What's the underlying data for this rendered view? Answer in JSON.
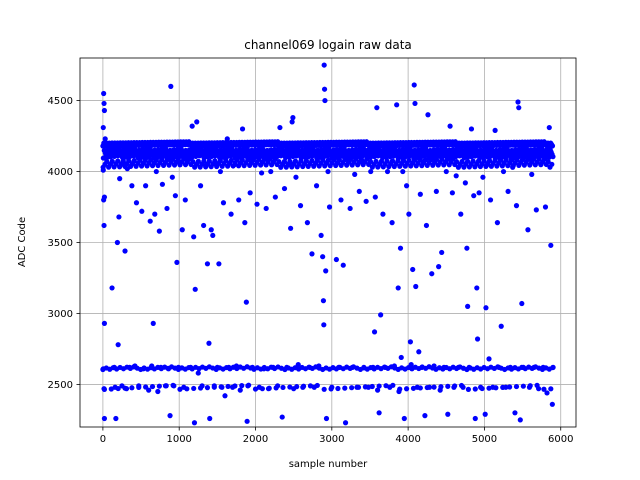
{
  "chart_data": {
    "type": "scatter",
    "title": "channel069 logain raw data",
    "xlabel": "sample number",
    "ylabel": "ADC Code",
    "xlim": [
      -300,
      6200
    ],
    "ylim": [
      2200,
      4800
    ],
    "xticks": [
      0,
      1000,
      2000,
      3000,
      4000,
      5000,
      6000
    ],
    "yticks": [
      2500,
      3000,
      3500,
      4000,
      4500
    ],
    "xtick_labels": [
      "0",
      "1000",
      "2000",
      "3000",
      "4000",
      "5000",
      "6000"
    ],
    "ytick_labels": [
      "2500",
      "3000",
      "3500",
      "4000",
      "4500"
    ],
    "grid": true,
    "marker_color": "#0000ff",
    "series": [
      {
        "points": [
          [
            10,
            4550
          ],
          [
            15,
            4480
          ],
          [
            20,
            4430
          ],
          [
            5,
            4310
          ],
          [
            30,
            4230
          ],
          [
            5,
            4010
          ],
          [
            20,
            3820
          ],
          [
            10,
            3800
          ],
          [
            15,
            3620
          ],
          [
            20,
            2930
          ],
          [
            5,
            2610
          ],
          [
            15,
            2470
          ],
          [
            20,
            2260
          ],
          [
            120,
            3180
          ],
          [
            130,
            4130
          ],
          [
            150,
            2620
          ],
          [
            160,
            2480
          ],
          [
            170,
            2260
          ],
          [
            190,
            3500
          ],
          [
            200,
            2780
          ],
          [
            210,
            3680
          ],
          [
            220,
            3950
          ],
          [
            230,
            4180
          ],
          [
            250,
            2490
          ],
          [
            270,
            4050
          ],
          [
            290,
            3440
          ],
          [
            310,
            2470
          ],
          [
            320,
            4020
          ],
          [
            350,
            2620
          ],
          [
            380,
            3900
          ],
          [
            400,
            4180
          ],
          [
            420,
            2630
          ],
          [
            440,
            3780
          ],
          [
            470,
            2490
          ],
          [
            490,
            4100
          ],
          [
            510,
            3720
          ],
          [
            530,
            2610
          ],
          [
            560,
            3900
          ],
          [
            580,
            4100
          ],
          [
            600,
            2460
          ],
          [
            620,
            3650
          ],
          [
            640,
            2630
          ],
          [
            660,
            2930
          ],
          [
            680,
            3700
          ],
          [
            700,
            4000
          ],
          [
            720,
            2450
          ],
          [
            740,
            3580
          ],
          [
            760,
            2620
          ],
          [
            780,
            3910
          ],
          [
            800,
            4190
          ],
          [
            820,
            2490
          ],
          [
            840,
            3740
          ],
          [
            860,
            2610
          ],
          [
            880,
            2280
          ],
          [
            890,
            4600
          ],
          [
            910,
            3960
          ],
          [
            930,
            2490
          ],
          [
            950,
            3830
          ],
          [
            970,
            3360
          ],
          [
            990,
            2620
          ],
          [
            1010,
            4060
          ],
          [
            1040,
            3590
          ],
          [
            1060,
            2480
          ],
          [
            1080,
            3800
          ],
          [
            1110,
            4100
          ],
          [
            1150,
            2620
          ],
          [
            1170,
            4320
          ],
          [
            1190,
            3540
          ],
          [
            1200,
            2230
          ],
          [
            1210,
            3170
          ],
          [
            1230,
            4350
          ],
          [
            1250,
            2580
          ],
          [
            1280,
            3900
          ],
          [
            1300,
            2490
          ],
          [
            1320,
            3620
          ],
          [
            1350,
            4040
          ],
          [
            1370,
            3350
          ],
          [
            1390,
            2790
          ],
          [
            1400,
            2260
          ],
          [
            1420,
            3590
          ],
          [
            1440,
            3550
          ],
          [
            1460,
            2490
          ],
          [
            1480,
            4060
          ],
          [
            1500,
            2620
          ],
          [
            1520,
            3350
          ],
          [
            1540,
            4000
          ],
          [
            1560,
            2480
          ],
          [
            1580,
            3780
          ],
          [
            1600,
            2420
          ],
          [
            1630,
            4230
          ],
          [
            1650,
            2620
          ],
          [
            1680,
            3700
          ],
          [
            1700,
            2480
          ],
          [
            1730,
            4050
          ],
          [
            1750,
            2630
          ],
          [
            1780,
            3800
          ],
          [
            1800,
            2460
          ],
          [
            1830,
            4300
          ],
          [
            1860,
            3640
          ],
          [
            1880,
            3080
          ],
          [
            1890,
            2240
          ],
          [
            1900,
            2490
          ],
          [
            1930,
            3850
          ],
          [
            1960,
            2620
          ],
          [
            1990,
            4200
          ],
          [
            2020,
            3770
          ],
          [
            2050,
            2480
          ],
          [
            2080,
            3990
          ],
          [
            2110,
            2610
          ],
          [
            2140,
            3740
          ],
          [
            2170,
            2470
          ],
          [
            2200,
            4000
          ],
          [
            2230,
            2620
          ],
          [
            2260,
            3820
          ],
          [
            2290,
            2490
          ],
          [
            2320,
            4310
          ],
          [
            2350,
            2270
          ],
          [
            2380,
            3880
          ],
          [
            2410,
            2620
          ],
          [
            2440,
            4050
          ],
          [
            2460,
            3600
          ],
          [
            2480,
            4350
          ],
          [
            2490,
            4380
          ],
          [
            2500,
            2470
          ],
          [
            2530,
            3960
          ],
          [
            2560,
            2640
          ],
          [
            2590,
            3760
          ],
          [
            2620,
            2480
          ],
          [
            2650,
            4200
          ],
          [
            2680,
            3640
          ],
          [
            2710,
            2620
          ],
          [
            2740,
            3420
          ],
          [
            2770,
            2480
          ],
          [
            2800,
            3900
          ],
          [
            2830,
            2630
          ],
          [
            2860,
            3550
          ],
          [
            2880,
            3400
          ],
          [
            2890,
            3090
          ],
          [
            2895,
            2920
          ],
          [
            2900,
            4750
          ],
          [
            2905,
            4580
          ],
          [
            2910,
            4500
          ],
          [
            2920,
            3300
          ],
          [
            2930,
            2260
          ],
          [
            2950,
            4000
          ],
          [
            2970,
            3750
          ],
          [
            3000,
            2480
          ],
          [
            3030,
            4150
          ],
          [
            3060,
            3380
          ],
          [
            3090,
            2620
          ],
          [
            3120,
            3800
          ],
          [
            3150,
            3340
          ],
          [
            3180,
            2230
          ],
          [
            3210,
            4100
          ],
          [
            3240,
            3740
          ],
          [
            3270,
            2620
          ],
          [
            3300,
            3980
          ],
          [
            3330,
            2480
          ],
          [
            3360,
            3860
          ],
          [
            3390,
            4080
          ],
          [
            3420,
            2620
          ],
          [
            3450,
            3790
          ],
          [
            3480,
            2480
          ],
          [
            3510,
            4000
          ],
          [
            3540,
            2620
          ],
          [
            3560,
            2870
          ],
          [
            3570,
            3820
          ],
          [
            3590,
            4450
          ],
          [
            3600,
            2460
          ],
          [
            3620,
            2300
          ],
          [
            3640,
            2990
          ],
          [
            3670,
            3700
          ],
          [
            3700,
            2620
          ],
          [
            3730,
            4000
          ],
          [
            3760,
            2480
          ],
          [
            3790,
            3640
          ],
          [
            3820,
            2630
          ],
          [
            3850,
            4470
          ],
          [
            3870,
            3180
          ],
          [
            3880,
            2450
          ],
          [
            3900,
            3460
          ],
          [
            3910,
            2690
          ],
          [
            3930,
            4000
          ],
          [
            3950,
            2260
          ],
          [
            3980,
            3900
          ],
          [
            4010,
            3700
          ],
          [
            4030,
            2800
          ],
          [
            4040,
            2640
          ],
          [
            4060,
            3310
          ],
          [
            4080,
            4610
          ],
          [
            4090,
            4480
          ],
          [
            4100,
            3190
          ],
          [
            4120,
            2480
          ],
          [
            4140,
            2730
          ],
          [
            4160,
            3840
          ],
          [
            4180,
            2620
          ],
          [
            4200,
            4070
          ],
          [
            4220,
            2280
          ],
          [
            4240,
            3620
          ],
          [
            4260,
            4400
          ],
          [
            4280,
            2480
          ],
          [
            4310,
            3280
          ],
          [
            4340,
            2630
          ],
          [
            4370,
            3860
          ],
          [
            4400,
            3330
          ],
          [
            4420,
            2460
          ],
          [
            4440,
            3430
          ],
          [
            4470,
            2620
          ],
          [
            4500,
            4000
          ],
          [
            4520,
            2290
          ],
          [
            4550,
            4320
          ],
          [
            4580,
            3850
          ],
          [
            4600,
            2480
          ],
          [
            4630,
            3970
          ],
          [
            4660,
            2620
          ],
          [
            4690,
            3700
          ],
          [
            4720,
            2480
          ],
          [
            4750,
            3920
          ],
          [
            4770,
            3460
          ],
          [
            4780,
            3050
          ],
          [
            4800,
            2620
          ],
          [
            4830,
            4300
          ],
          [
            4860,
            3830
          ],
          [
            4880,
            2260
          ],
          [
            4900,
            3180
          ],
          [
            4910,
            2820
          ],
          [
            4930,
            3850
          ],
          [
            4950,
            2480
          ],
          [
            4980,
            3960
          ],
          [
            5010,
            2290
          ],
          [
            5020,
            3040
          ],
          [
            5040,
            4050
          ],
          [
            5060,
            2680
          ],
          [
            5080,
            3800
          ],
          [
            5110,
            2480
          ],
          [
            5140,
            4290
          ],
          [
            5170,
            3640
          ],
          [
            5190,
            2620
          ],
          [
            5220,
            2910
          ],
          [
            5250,
            4000
          ],
          [
            5280,
            2480
          ],
          [
            5310,
            3860
          ],
          [
            5340,
            2620
          ],
          [
            5370,
            4030
          ],
          [
            5400,
            2300
          ],
          [
            5420,
            3760
          ],
          [
            5440,
            4490
          ],
          [
            5450,
            4450
          ],
          [
            5470,
            2250
          ],
          [
            5490,
            3070
          ],
          [
            5510,
            2620
          ],
          [
            5540,
            4100
          ],
          [
            5570,
            3590
          ],
          [
            5590,
            2480
          ],
          [
            5620,
            3980
          ],
          [
            5650,
            2620
          ],
          [
            5680,
            3730
          ],
          [
            5710,
            2470
          ],
          [
            5740,
            4050
          ],
          [
            5770,
            2620
          ],
          [
            5800,
            3750
          ],
          [
            5820,
            2440
          ],
          [
            5850,
            4310
          ],
          [
            5870,
            3480
          ],
          [
            5890,
            2360
          ],
          [
            5900,
            2620
          ]
        ]
      }
    ]
  }
}
